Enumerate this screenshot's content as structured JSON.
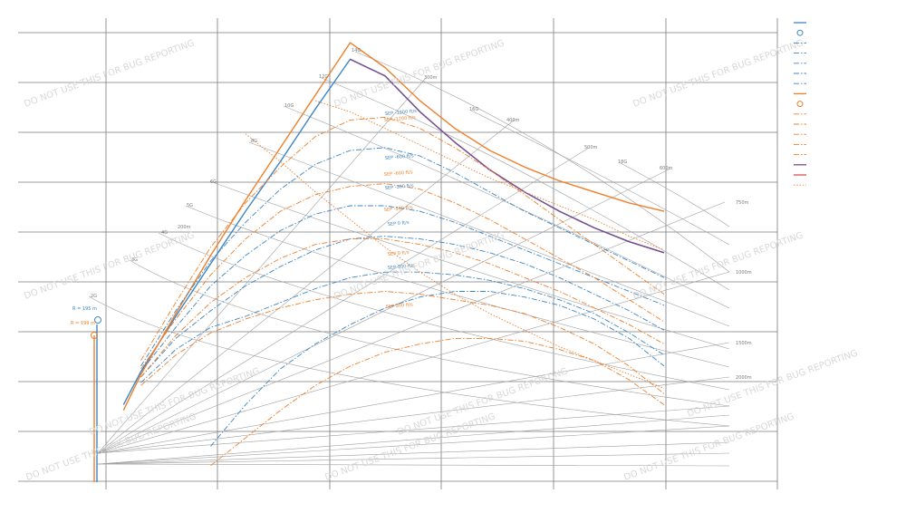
{
  "chart_data": {
    "type": "line",
    "title": "",
    "xlabel": "",
    "ylabel": "",
    "watermark": "DO NOT USE THIS FOR BUG REPORTING",
    "colors": {
      "blue": "#3d86c6",
      "orange": "#f07f2a",
      "purple": "#7a4a8c",
      "red": "#d9534f",
      "grid": "#7a7a7a",
      "overlay": "#a0a0a0"
    },
    "g_labels": [
      "2G",
      "3G",
      "4G",
      "5G",
      "6G",
      "8G",
      "10G",
      "12G",
      "14G",
      "16G",
      "18G"
    ],
    "radius_labels": [
      "200m",
      "300m",
      "400m",
      "500m",
      "600m",
      "750m",
      "1000m",
      "1500m",
      "2000m"
    ],
    "sep_labels_blue": [
      "SEP -1200 ft/s",
      "SEP -600 ft/s",
      "SEP -300 ft/s",
      "SEP 0 ft/s",
      "SEP 300 ft/s"
    ],
    "sep_labels_orange": [
      "SEP -1200 ft/s",
      "SEP -600 ft/s",
      "SEP -300 ft/s",
      "SEP 0 ft/s",
      "SEP 300 ft/s"
    ],
    "markers": [
      {
        "label": "R = 195 m",
        "color": "blue"
      },
      {
        "label": "R = 199 m",
        "color": "orange"
      }
    ],
    "series": [
      {
        "style": "solid",
        "color": "blue",
        "x": [
          0.05,
          0.1,
          0.2,
          0.3,
          0.4,
          0.5,
          0.6,
          0.7,
          0.8,
          0.9,
          1.0,
          1.1,
          1.2,
          1.3,
          1.4,
          1.5,
          1.6
        ],
        "y": [
          1.2,
          2.4,
          4.4,
          6.3,
          8.2,
          10.0,
          11.9,
          13.7,
          13.1,
          11.8,
          10.7,
          9.7,
          8.9,
          8.2,
          7.6,
          7.1,
          6.7
        ]
      },
      {
        "style": "solid",
        "color": "orange",
        "x": [
          0.05,
          0.1,
          0.2,
          0.3,
          0.4,
          0.5,
          0.6,
          0.7,
          0.8,
          0.9,
          1.0,
          1.1,
          1.2,
          1.3,
          1.4,
          1.5,
          1.6
        ],
        "y": [
          1.0,
          2.3,
          4.5,
          6.6,
          8.6,
          10.5,
          12.4,
          14.3,
          13.4,
          12.2,
          11.2,
          10.4,
          9.8,
          9.3,
          8.9,
          8.5,
          8.2
        ]
      },
      {
        "style": "solid",
        "color": "purple",
        "x": [
          0.7,
          0.8,
          0.9,
          1.0,
          1.1,
          1.2,
          1.3,
          1.4,
          1.5,
          1.6
        ],
        "y": [
          13.7,
          13.1,
          11.8,
          10.7,
          9.7,
          8.9,
          8.2,
          7.6,
          7.1,
          6.7
        ]
      },
      {
        "style": "dashdot",
        "color": "blue",
        "x": [
          0.1,
          0.2,
          0.3,
          0.4,
          0.5,
          0.6,
          0.7,
          0.8,
          0.9,
          1.0,
          1.1,
          1.2,
          1.3,
          1.4,
          1.5,
          1.6
        ],
        "y": [
          2.6,
          4.6,
          6.4,
          7.8,
          9.0,
          9.9,
          10.4,
          10.5,
          10.2,
          9.6,
          8.9,
          8.2,
          7.6,
          7.0,
          6.4,
          5.8
        ]
      },
      {
        "style": "dashdot",
        "color": "blue",
        "x": [
          0.1,
          0.2,
          0.3,
          0.4,
          0.5,
          0.6,
          0.7,
          0.8,
          0.9,
          1.0,
          1.1,
          1.2,
          1.3,
          1.4,
          1.5,
          1.6
        ],
        "y": [
          2.4,
          4.0,
          5.5,
          6.6,
          7.5,
          8.1,
          8.4,
          8.4,
          8.2,
          7.8,
          7.3,
          6.8,
          6.3,
          5.8,
          5.3,
          4.8
        ]
      },
      {
        "style": "dashdot",
        "color": "blue",
        "x": [
          0.1,
          0.2,
          0.3,
          0.4,
          0.5,
          0.6,
          0.7,
          0.8,
          0.9,
          1.0,
          1.1,
          1.2,
          1.3,
          1.4,
          1.5,
          1.6
        ],
        "y": [
          2.2,
          3.6,
          4.6,
          5.5,
          6.2,
          6.8,
          7.2,
          7.3,
          7.2,
          7.0,
          6.7,
          6.3,
          5.8,
          5.2,
          4.6,
          3.9
        ]
      },
      {
        "style": "dashdot",
        "color": "blue",
        "x": [
          0.1,
          0.2,
          0.3,
          0.4,
          0.5,
          0.6,
          0.7,
          0.8,
          0.9,
          1.0,
          1.1,
          1.2,
          1.3,
          1.4,
          1.5,
          1.6
        ],
        "y": [
          2.0,
          3.2,
          4.0,
          4.4,
          4.9,
          5.4,
          5.8,
          6.0,
          6.0,
          5.9,
          5.7,
          5.4,
          5.0,
          4.5,
          3.8,
          3.0
        ]
      },
      {
        "style": "dashdot",
        "color": "blue",
        "x": [
          0.3,
          0.4,
          0.5,
          0.6,
          0.7,
          0.8,
          0.9,
          1.0,
          1.1,
          1.2,
          1.3,
          1.4,
          1.5,
          1.6
        ],
        "y": [
          -0.3,
          1.2,
          2.5,
          3.4,
          4.1,
          4.7,
          5.1,
          5.3,
          5.3,
          5.1,
          4.8,
          4.3,
          3.6,
          2.6
        ]
      },
      {
        "style": "dashdot",
        "color": "orange",
        "x": [
          0.1,
          0.2,
          0.3,
          0.4,
          0.5,
          0.6,
          0.7,
          0.8,
          0.9,
          1.0,
          1.1,
          1.2,
          1.3,
          1.4,
          1.5,
          1.6
        ],
        "y": [
          2.8,
          4.9,
          6.9,
          8.5,
          9.8,
          10.9,
          11.5,
          11.6,
          11.2,
          10.5,
          9.7,
          8.8,
          7.9,
          7.0,
          6.1,
          5.2
        ]
      },
      {
        "style": "dashdot",
        "color": "orange",
        "x": [
          0.1,
          0.2,
          0.3,
          0.4,
          0.5,
          0.6,
          0.7,
          0.8,
          0.9,
          1.0,
          1.1,
          1.2,
          1.3,
          1.4,
          1.5,
          1.6
        ],
        "y": [
          2.5,
          4.3,
          5.9,
          7.2,
          8.2,
          8.8,
          9.1,
          9.2,
          9.0,
          8.5,
          7.9,
          7.2,
          6.5,
          5.8,
          5.0,
          4.2
        ]
      },
      {
        "style": "dashdot",
        "color": "orange",
        "x": [
          0.1,
          0.2,
          0.3,
          0.4,
          0.5,
          0.6,
          0.7,
          0.8,
          0.9,
          1.0,
          1.1,
          1.2,
          1.3,
          1.4,
          1.5,
          1.6
        ],
        "y": [
          2.2,
          3.7,
          4.9,
          5.8,
          6.5,
          7.0,
          7.2,
          7.2,
          7.0,
          6.7,
          6.3,
          5.8,
          5.3,
          4.7,
          4.1,
          3.4
        ]
      },
      {
        "style": "dashdot",
        "color": "orange",
        "x": [
          0.1,
          0.2,
          0.3,
          0.4,
          0.5,
          0.6,
          0.7,
          0.8,
          0.9,
          1.0,
          1.1,
          1.2,
          1.3,
          1.4,
          1.5,
          1.6
        ],
        "y": [
          1.9,
          3.0,
          3.8,
          4.3,
          4.7,
          5.0,
          5.2,
          5.3,
          5.2,
          5.0,
          4.8,
          4.5,
          4.0,
          3.4,
          2.6,
          1.6
        ]
      },
      {
        "style": "dashdot",
        "color": "orange",
        "x": [
          0.3,
          0.4,
          0.5,
          0.6,
          0.7,
          0.8,
          0.9,
          1.0,
          1.1,
          1.2,
          1.3,
          1.4,
          1.5,
          1.6
        ],
        "y": [
          -1.0,
          0.0,
          1.0,
          1.9,
          2.6,
          3.1,
          3.4,
          3.6,
          3.6,
          3.5,
          3.2,
          2.8,
          2.1,
          1.2
        ]
      },
      {
        "style": "dotted",
        "color": "orange",
        "x": [
          0.4,
          0.5,
          0.6,
          0.7,
          0.8,
          0.9,
          1.0,
          1.1,
          1.2,
          1.3,
          1.4,
          1.5,
          1.6
        ],
        "y": [
          11.0,
          10.0,
          8.9,
          7.9,
          6.9,
          6.0,
          5.2,
          4.5,
          3.9,
          3.3,
          2.8,
          2.3,
          1.8
        ]
      },
      {
        "style": "dotted",
        "color": "orange",
        "x": [
          0.6,
          0.7,
          0.8,
          0.9,
          1.0,
          1.1,
          1.2,
          1.3,
          1.4,
          1.5,
          1.6
        ],
        "y": [
          12.2,
          11.8,
          11.2,
          10.6,
          10.0,
          9.4,
          8.9,
          8.4,
          7.9,
          7.3,
          6.8
        ]
      }
    ]
  }
}
